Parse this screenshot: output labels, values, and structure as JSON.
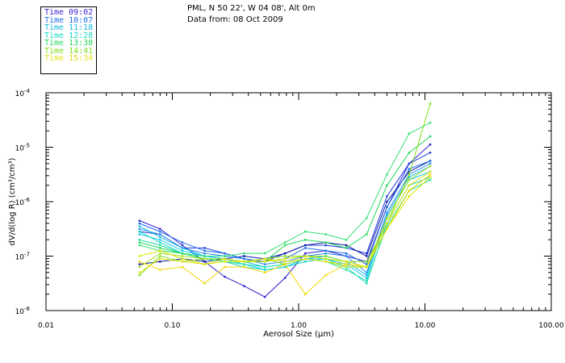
{
  "legend": {
    "entries": [
      {
        "label": "Time 09:02",
        "color": "#3a1fd0"
      },
      {
        "label": "Time 10:07",
        "color": "#1e6ce8"
      },
      {
        "label": "Time 11:18",
        "color": "#18b8e0"
      },
      {
        "label": "Time 12:28",
        "color": "#18d8c0"
      },
      {
        "label": "Time 13:38",
        "color": "#22d85a"
      },
      {
        "label": "Time 14:41",
        "color": "#7ce018"
      },
      {
        "label": "Time 15:34",
        "color": "#e0e018"
      }
    ]
  },
  "header": {
    "location": "PML, N 50 22', W 04 08', Alt 0m",
    "data_from": "Data from: 08 Oct 2009"
  },
  "chart_data": {
    "type": "line",
    "xscale": "log",
    "yscale": "log",
    "xlim": [
      0.01,
      100
    ],
    "ylim": [
      1e-08,
      0.0001
    ],
    "xlabel": "Aerosol Size (μm)",
    "ylabel": "dV/d(log R) (cm³/cm³)",
    "xtick_labels": [
      "0.01",
      "0.10",
      "1.00",
      "10.00",
      "100.00"
    ],
    "xtick_values": [
      0.01,
      0.1,
      1,
      10,
      100
    ],
    "ytick_labels": [
      {
        "base": "10",
        "exp": "-8"
      },
      {
        "base": "10",
        "exp": "-7"
      },
      {
        "base": "10",
        "exp": "-6"
      },
      {
        "base": "10",
        "exp": "-5"
      },
      {
        "base": "10",
        "exp": "-4"
      }
    ],
    "ytick_values": [
      1e-08,
      1e-07,
      1e-06,
      1e-05,
      0.0001
    ],
    "x": [
      0.055,
      0.08,
      0.12,
      0.18,
      0.26,
      0.37,
      0.54,
      0.78,
      1.13,
      1.64,
      2.38,
      3.45,
      5.0,
      7.5,
      11.0
    ],
    "series": [
      {
        "name": "Time 09:02",
        "color": "#2b1fd0",
        "y_log10": [
          -6.35,
          -6.5,
          -6.8,
          -7.1,
          -7.38,
          -7.55,
          -7.75,
          -7.4,
          -6.95,
          -6.9,
          -7.0,
          -7.1,
          -6.1,
          -5.3,
          -4.95
        ]
      },
      {
        "name": "Time 09:02",
        "color": "#1f3ae0",
        "y_log10": [
          -6.55,
          -6.6,
          -6.85,
          -6.85,
          -6.95,
          -7.05,
          -7.1,
          -6.95,
          -6.8,
          -6.8,
          -6.85,
          -6.95,
          -5.9,
          -5.3,
          -5.1
        ]
      },
      {
        "name": "Time 09:02",
        "color": "#0f1fa0",
        "y_log10": [
          -7.15,
          -7.1,
          -7.05,
          -7.1,
          -7.05,
          -7.0,
          -7.05,
          -6.95,
          -6.8,
          -6.75,
          -6.8,
          -7.0,
          -6.0,
          -5.45,
          -5.25
        ]
      },
      {
        "name": "Time 10:07",
        "color": "#1e6ce8",
        "y_log10": [
          -6.4,
          -6.55,
          -6.75,
          -6.9,
          -6.95,
          -7.05,
          -7.1,
          -7.05,
          -6.85,
          -6.9,
          -6.95,
          -7.15,
          -6.1,
          -5.4,
          -5.25
        ]
      },
      {
        "name": "Time 10:07",
        "color": "#2a8cf0",
        "y_log10": [
          -6.5,
          -6.6,
          -6.85,
          -6.95,
          -7.0,
          -7.05,
          -7.15,
          -7.1,
          -7.0,
          -6.95,
          -7.0,
          -7.3,
          -6.2,
          -5.5,
          -5.3
        ]
      },
      {
        "name": "Time 11:18",
        "color": "#18b8e0",
        "y_log10": [
          -6.45,
          -6.65,
          -6.85,
          -7.0,
          -7.05,
          -7.1,
          -7.2,
          -7.15,
          -7.05,
          -7.0,
          -7.1,
          -7.35,
          -6.25,
          -5.55,
          -5.35
        ]
      },
      {
        "name": "Time 11:18",
        "color": "#10c8f0",
        "y_log10": [
          -6.6,
          -6.7,
          -6.9,
          -7.0,
          -7.05,
          -7.15,
          -7.25,
          -7.2,
          -7.05,
          -7.05,
          -7.15,
          -7.4,
          -6.3,
          -5.6,
          -5.45
        ]
      },
      {
        "name": "Time 12:28",
        "color": "#18d8c0",
        "y_log10": [
          -6.55,
          -6.75,
          -6.95,
          -7.05,
          -7.1,
          -7.2,
          -7.25,
          -7.2,
          -7.1,
          -7.05,
          -7.2,
          -7.5,
          -6.4,
          -5.7,
          -5.55
        ]
      },
      {
        "name": "Time 12:28",
        "color": "#20e0a8",
        "y_log10": [
          -6.7,
          -6.8,
          -6.95,
          -7.05,
          -7.1,
          -7.15,
          -7.2,
          -7.15,
          -7.05,
          -7.1,
          -7.25,
          -7.45,
          -6.45,
          -5.8,
          -5.6
        ]
      },
      {
        "name": "Time 13:38",
        "color": "#22d85a",
        "y_log10": [
          -6.75,
          -6.85,
          -6.95,
          -7.05,
          -7.05,
          -7.1,
          -7.1,
          -6.8,
          -6.7,
          -6.75,
          -6.85,
          -6.6,
          -5.7,
          -5.1,
          -4.8
        ]
      },
      {
        "name": "Time 13:38",
        "color": "#30e070",
        "y_log10": [
          -6.8,
          -6.9,
          -6.95,
          -7.0,
          -7.0,
          -6.95,
          -6.95,
          -6.75,
          -6.55,
          -6.6,
          -6.7,
          -6.3,
          -5.5,
          -4.75,
          -4.55
        ]
      },
      {
        "name": "Time 14:41",
        "color": "#7ce018",
        "y_log10": [
          -7.35,
          -7.0,
          -7.1,
          -7.05,
          -7.05,
          -7.1,
          -7.05,
          -7.0,
          -7.0,
          -7.0,
          -7.1,
          -7.1,
          -6.4,
          -5.5,
          -4.2
        ]
      },
      {
        "name": "Time 14:41",
        "color": "#a8e020",
        "y_log10": [
          -7.2,
          -6.95,
          -7.0,
          -7.05,
          -7.05,
          -7.1,
          -7.05,
          -7.15,
          -7.05,
          -7.1,
          -7.2,
          -7.2,
          -6.3,
          -5.6,
          -5.35
        ]
      },
      {
        "name": "Time 15:34",
        "color": "#e0e018",
        "y_log10": [
          -7.3,
          -7.05,
          -7.1,
          -7.15,
          -7.05,
          -7.1,
          -7.05,
          -7.1,
          -7.05,
          -7.1,
          -7.15,
          -7.2,
          -6.4,
          -5.7,
          -5.45
        ]
      },
      {
        "name": "Time 15:34",
        "color": "#f0d800",
        "y_log10": [
          -7.1,
          -7.25,
          -7.2,
          -7.5,
          -7.2,
          -7.2,
          -7.3,
          -7.15,
          -7.7,
          -7.35,
          -7.15,
          -7.2,
          -6.5,
          -5.8,
          -5.5
        ]
      },
      {
        "name": "Time 15:34",
        "color": "#d8e800",
        "y_log10": [
          -7.0,
          -6.9,
          -7.05,
          -7.15,
          -7.1,
          -7.1,
          -7.1,
          -7.05,
          -7.0,
          -7.05,
          -7.1,
          -7.2,
          -6.5,
          -5.9,
          -5.55
        ]
      }
    ]
  }
}
